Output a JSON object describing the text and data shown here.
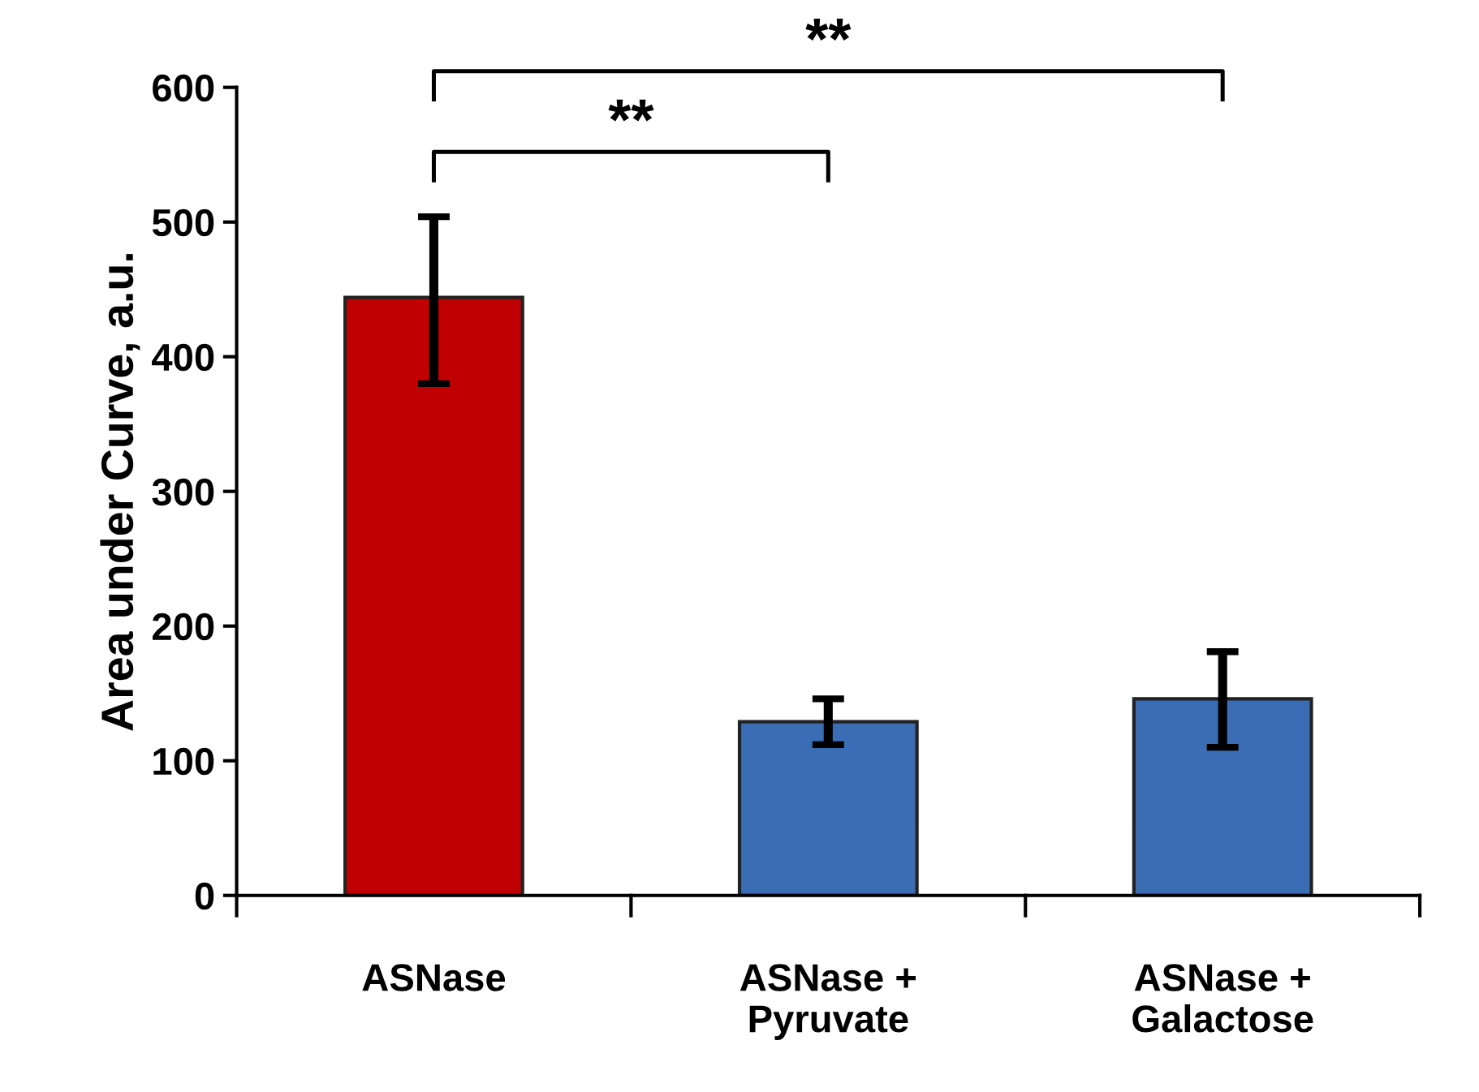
{
  "chart_data": {
    "type": "bar",
    "ylabel": "Area under Curve, a.u.",
    "categories": [
      "ASNase",
      "ASNase +\nPyruvate",
      "ASNase +\nGalactose"
    ],
    "values": [
      444,
      129,
      146
    ],
    "colors": [
      "#c00000",
      "#3a6db4",
      "#3a6db4"
    ],
    "errors": [
      [
        380,
        504
      ],
      [
        112,
        146
      ],
      [
        110,
        181
      ]
    ],
    "ylim": [
      0,
      600
    ],
    "yticks": [
      0,
      100,
      200,
      300,
      400,
      500,
      600
    ],
    "grid": false,
    "annotations": [
      "**",
      "**"
    ]
  }
}
